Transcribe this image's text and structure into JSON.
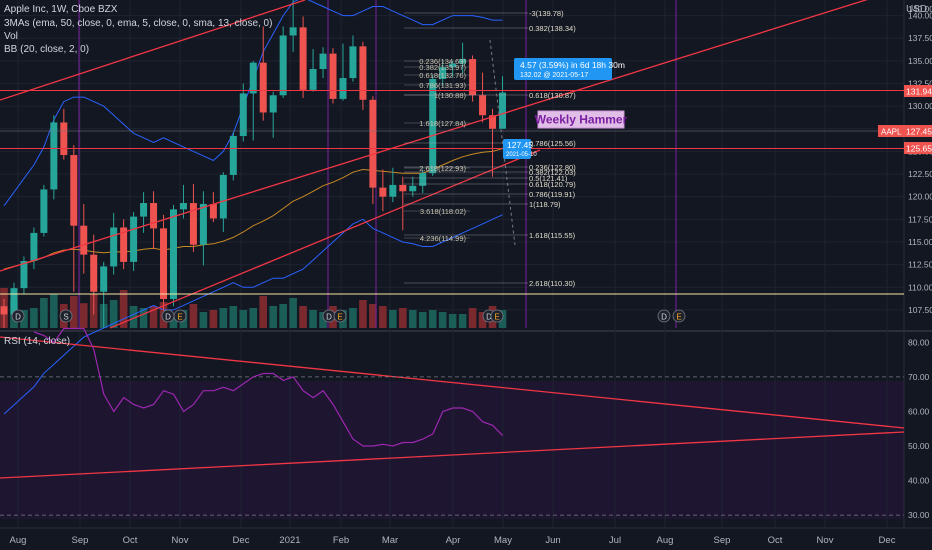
{
  "header": {
    "symbol_line": "Apple Inc, 1W, Cboe BZX",
    "ma_line": "3MAs (ema, 50, close, 0, ema, 5, close, 0, sma, 13, close, 0)",
    "vol_line": "Vol",
    "bb_line": "BB (20, close, 2, 0)",
    "rsi_line": "RSI (14, close)",
    "currency": "USD"
  },
  "colors": {
    "background": "#131722",
    "up": "#26a69a",
    "down": "#ef5350",
    "trendline": "#f23645",
    "bb": "#2962ff",
    "ma": "#f5a623",
    "rsi": "#9c27b0",
    "event_line": "#7b1fa2",
    "fib": "#b2b5be",
    "tag_blue": "#2196f3",
    "annotation_bg": "#e1bee7",
    "annotation_text": "#7b1fa2"
  },
  "chart_data": {
    "type": "candlestick",
    "symbol": "AAPL",
    "interval": "1W",
    "x_labels": [
      "Aug",
      "Sep",
      "Oct",
      "Nov",
      "Dec",
      "2021",
      "Feb",
      "Mar",
      "Apr",
      "May",
      "Jun",
      "Jul",
      "Aug",
      "Sep",
      "Oct",
      "Nov",
      "Dec"
    ],
    "y_ticks": [
      107.5,
      110.0,
      112.5,
      115.0,
      117.5,
      120.0,
      122.5,
      125.0,
      127.5,
      130.0,
      132.5,
      135.0,
      137.5,
      140.0
    ],
    "y_range": [
      105.5,
      141.5
    ],
    "candles": [
      {
        "o": 107.9,
        "h": 108.7,
        "l": 105.5,
        "c": 107.0
      },
      {
        "o": 107.0,
        "h": 110.5,
        "l": 106.6,
        "c": 109.9
      },
      {
        "o": 109.9,
        "h": 113.4,
        "l": 109.2,
        "c": 112.9
      },
      {
        "o": 112.9,
        "h": 116.6,
        "l": 112.0,
        "c": 116.0
      },
      {
        "o": 116.0,
        "h": 121.3,
        "l": 115.6,
        "c": 120.8
      },
      {
        "o": 120.8,
        "h": 129.0,
        "l": 119.7,
        "c": 128.2
      },
      {
        "o": 128.2,
        "h": 129.7,
        "l": 124.1,
        "c": 124.6
      },
      {
        "o": 124.6,
        "h": 125.7,
        "l": 109.5,
        "c": 116.8
      },
      {
        "o": 116.8,
        "h": 119.2,
        "l": 111.5,
        "c": 113.6
      },
      {
        "o": 113.6,
        "h": 115.8,
        "l": 107.0,
        "c": 109.5
      },
      {
        "o": 109.5,
        "h": 112.8,
        "l": 105.5,
        "c": 112.3
      },
      {
        "o": 112.3,
        "h": 118.2,
        "l": 111.4,
        "c": 116.6
      },
      {
        "o": 116.6,
        "h": 117.5,
        "l": 112.0,
        "c": 112.8
      },
      {
        "o": 112.8,
        "h": 118.3,
        "l": 111.8,
        "c": 117.8
      },
      {
        "o": 117.8,
        "h": 120.5,
        "l": 116.0,
        "c": 119.3
      },
      {
        "o": 119.3,
        "h": 120.6,
        "l": 114.2,
        "c": 116.5
      },
      {
        "o": 116.5,
        "h": 118.0,
        "l": 107.4,
        "c": 108.7
      },
      {
        "o": 108.7,
        "h": 119.1,
        "l": 107.9,
        "c": 118.6
      },
      {
        "o": 118.6,
        "h": 121.3,
        "l": 117.6,
        "c": 119.3
      },
      {
        "o": 119.3,
        "h": 121.4,
        "l": 113.9,
        "c": 114.7
      },
      {
        "o": 114.7,
        "h": 120.6,
        "l": 112.4,
        "c": 119.2
      },
      {
        "o": 119.2,
        "h": 120.5,
        "l": 117.2,
        "c": 117.6
      },
      {
        "o": 117.6,
        "h": 122.7,
        "l": 116.1,
        "c": 122.4
      },
      {
        "o": 122.4,
        "h": 127.1,
        "l": 121.8,
        "c": 126.7
      },
      {
        "o": 126.7,
        "h": 132.5,
        "l": 126.1,
        "c": 131.4
      },
      {
        "o": 131.4,
        "h": 135.0,
        "l": 126.2,
        "c": 134.8
      },
      {
        "o": 134.8,
        "h": 138.8,
        "l": 128.4,
        "c": 129.3
      },
      {
        "o": 129.3,
        "h": 131.6,
        "l": 126.5,
        "c": 131.2
      },
      {
        "o": 131.2,
        "h": 138.8,
        "l": 130.9,
        "c": 137.8
      },
      {
        "o": 137.8,
        "h": 145.1,
        "l": 136.0,
        "c": 138.7
      },
      {
        "o": 138.7,
        "h": 139.9,
        "l": 130.9,
        "c": 131.8
      },
      {
        "o": 131.8,
        "h": 136.3,
        "l": 131.6,
        "c": 134.1
      },
      {
        "o": 134.1,
        "h": 136.5,
        "l": 133.1,
        "c": 135.8
      },
      {
        "o": 135.8,
        "h": 136.4,
        "l": 130.3,
        "c": 130.8
      },
      {
        "o": 130.8,
        "h": 136.9,
        "l": 130.6,
        "c": 133.1
      },
      {
        "o": 133.1,
        "h": 137.8,
        "l": 132.7,
        "c": 136.6
      },
      {
        "o": 136.6,
        "h": 137.1,
        "l": 129.6,
        "c": 130.7
      },
      {
        "o": 130.7,
        "h": 131.1,
        "l": 119.2,
        "c": 121.0
      },
      {
        "o": 121.0,
        "h": 123.0,
        "l": 118.4,
        "c": 120.0
      },
      {
        "o": 120.0,
        "h": 123.2,
        "l": 119.4,
        "c": 121.3
      },
      {
        "o": 121.3,
        "h": 122.2,
        "l": 116.3,
        "c": 120.6
      },
      {
        "o": 120.6,
        "h": 122.2,
        "l": 120.0,
        "c": 121.2
      },
      {
        "o": 121.2,
        "h": 123.0,
        "l": 120.4,
        "c": 122.6
      },
      {
        "o": 122.6,
        "h": 133.4,
        "l": 122.3,
        "c": 133.0
      },
      {
        "o": 133.0,
        "h": 135.1,
        "l": 132.2,
        "c": 134.3
      },
      {
        "o": 134.3,
        "h": 135.0,
        "l": 133.2,
        "c": 134.7
      },
      {
        "o": 134.7,
        "h": 137.0,
        "l": 133.6,
        "c": 135.2
      },
      {
        "o": 135.2,
        "h": 135.6,
        "l": 130.5,
        "c": 131.2
      },
      {
        "o": 131.2,
        "h": 133.7,
        "l": 128.2,
        "c": 129.0
      },
      {
        "o": 129.0,
        "h": 129.7,
        "l": 122.2,
        "c": 127.5
      },
      {
        "o": 127.5,
        "h": 133.3,
        "l": 127.5,
        "c": 131.5
      }
    ],
    "volume": [
      {
        "v": 1.0,
        "up": false
      },
      {
        "v": 0.7,
        "up": true
      },
      {
        "v": 0.45,
        "up": true
      },
      {
        "v": 0.5,
        "up": true
      },
      {
        "v": 0.75,
        "up": true
      },
      {
        "v": 0.85,
        "up": true
      },
      {
        "v": 0.6,
        "up": false
      },
      {
        "v": 0.8,
        "up": false
      },
      {
        "v": 0.62,
        "up": false
      },
      {
        "v": 0.85,
        "up": false
      },
      {
        "v": 0.6,
        "up": true
      },
      {
        "v": 0.7,
        "up": true
      },
      {
        "v": 0.95,
        "up": false
      },
      {
        "v": 0.55,
        "up": true
      },
      {
        "v": 0.5,
        "up": true
      },
      {
        "v": 0.55,
        "up": false
      },
      {
        "v": 0.65,
        "up": false
      },
      {
        "v": 0.35,
        "up": true
      },
      {
        "v": 0.45,
        "up": true
      },
      {
        "v": 0.6,
        "up": false
      },
      {
        "v": 0.4,
        "up": true
      },
      {
        "v": 0.45,
        "up": false
      },
      {
        "v": 0.5,
        "up": true
      },
      {
        "v": 0.55,
        "up": true
      },
      {
        "v": 0.45,
        "up": true
      },
      {
        "v": 0.5,
        "up": true
      },
      {
        "v": 0.8,
        "up": false
      },
      {
        "v": 0.55,
        "up": true
      },
      {
        "v": 0.6,
        "up": true
      },
      {
        "v": 0.75,
        "up": true
      },
      {
        "v": 0.55,
        "up": false
      },
      {
        "v": 0.45,
        "up": true
      },
      {
        "v": 0.4,
        "up": true
      },
      {
        "v": 0.55,
        "up": false
      },
      {
        "v": 0.45,
        "up": true
      },
      {
        "v": 0.5,
        "up": true
      },
      {
        "v": 0.7,
        "up": false
      },
      {
        "v": 0.6,
        "up": false
      },
      {
        "v": 0.55,
        "up": false
      },
      {
        "v": 0.45,
        "up": true
      },
      {
        "v": 0.5,
        "up": false
      },
      {
        "v": 0.45,
        "up": true
      },
      {
        "v": 0.4,
        "up": true
      },
      {
        "v": 0.45,
        "up": true
      },
      {
        "v": 0.4,
        "up": true
      },
      {
        "v": 0.35,
        "up": true
      },
      {
        "v": 0.35,
        "up": true
      },
      {
        "v": 0.5,
        "up": false
      },
      {
        "v": 0.4,
        "up": false
      },
      {
        "v": 0.55,
        "up": false
      },
      {
        "v": 0.45,
        "up": true
      }
    ],
    "ema50": [
      112.0,
      112.3,
      112.6,
      112.9,
      113.3,
      113.8,
      114.1,
      114.2,
      114.1,
      113.9,
      113.8,
      113.9,
      113.9,
      114.0,
      114.2,
      114.3,
      114.1,
      114.3,
      114.5,
      114.5,
      114.7,
      114.8,
      115.1,
      115.5,
      116.1,
      116.8,
      117.3,
      117.9,
      118.7,
      119.5,
      120.0,
      120.6,
      121.2,
      121.6,
      122.1,
      122.7,
      123.0,
      122.9,
      122.8,
      122.7,
      122.6,
      122.6,
      122.6,
      123.0,
      123.5,
      124.0,
      124.4,
      124.7,
      124.9,
      125.0,
      125.3
    ],
    "bb_upper": [
      119.0,
      120.5,
      122.0,
      123.5,
      125.5,
      128.5,
      130.5,
      131.0,
      131.0,
      130.5,
      130.0,
      129.0,
      128.0,
      127.0,
      126.5,
      126.0,
      126.5,
      126.0,
      125.5,
      125.0,
      124.5,
      124.0,
      125.0,
      127.0,
      130.0,
      133.0,
      136.0,
      138.0,
      140.0,
      141.5,
      142.0,
      141.5,
      141.0,
      140.5,
      140.0,
      140.0,
      140.5,
      141.0,
      141.0,
      140.5,
      140.0,
      139.5,
      139.0,
      139.0,
      139.5,
      140.0,
      140.0,
      140.0,
      139.8,
      139.5,
      139.5
    ],
    "bb_lower": [
      96.0,
      97.0,
      98.0,
      99.0,
      100.5,
      101.5,
      102.5,
      103.5,
      104.5,
      105.0,
      105.5,
      106.0,
      106.5,
      107.0,
      107.5,
      108.0,
      107.5,
      107.5,
      108.0,
      108.5,
      109.0,
      109.5,
      110.0,
      110.5,
      110.0,
      110.0,
      110.5,
      111.0,
      111.0,
      111.5,
      112.0,
      113.0,
      114.0,
      115.0,
      116.0,
      117.0,
      117.5,
      116.5,
      116.0,
      115.5,
      115.0,
      114.8,
      114.5,
      114.5,
      115.0,
      115.5,
      116.0,
      116.5,
      117.0,
      117.5,
      118.0
    ],
    "rsi": {
      "ticks": [
        30.0,
        40.0,
        50.0,
        60.0,
        70.0,
        80.0
      ],
      "range": [
        28,
        83
      ],
      "bands": [
        30,
        70
      ],
      "values": [
        83,
        82,
        80,
        84,
        84,
        84,
        78,
        65,
        60,
        64,
        62,
        61,
        62,
        66,
        65,
        60,
        62,
        66,
        66,
        67,
        66,
        68,
        70,
        71,
        71,
        69,
        70,
        66,
        64,
        66,
        62,
        57,
        52,
        50,
        50,
        50.5,
        50,
        51,
        51,
        52,
        53.5,
        60,
        61,
        61,
        60,
        57,
        56,
        53
      ]
    }
  },
  "fib_upper": [
    {
      "label": "-3(139.78)"
    },
    {
      "label": "0.382(138.34)"
    },
    {
      "label": "0.618(130.87)"
    },
    {
      "label": "0.786(125.56)"
    },
    {
      "label": "0.236(122.80)"
    },
    {
      "label": "0.382(122.03)"
    },
    {
      "label": "0.5(121.41)"
    },
    {
      "label": "0.618(120.79)"
    },
    {
      "label": "0.786(119.91)"
    },
    {
      "label": "1(118.79)"
    },
    {
      "label": "1.618(115.55)"
    },
    {
      "label": "2.618(110.30)"
    }
  ],
  "fib_left": [
    {
      "label": "0.236(134.63)"
    },
    {
      "label": "0.382(133.97)"
    },
    {
      "label": "0.618(132.76)"
    },
    {
      "label": "0.786(131.93)"
    },
    {
      "label": "1(130.88)"
    },
    {
      "label": "1.618(127.84)"
    },
    {
      "label": "2.618(122.93)"
    },
    {
      "label": "3.618(118.02)"
    },
    {
      "label": "4.236(114.99)"
    }
  ],
  "price_tags": [
    {
      "label": "131.94",
      "kind": "line"
    },
    {
      "label": "127.45",
      "kind": "last",
      "prefix": "AAPL"
    },
    {
      "label": "125.65",
      "kind": "line"
    }
  ],
  "axis_top": {
    "label": "140.00"
  },
  "annotations": {
    "measure_line1": "4.57 (3.59%) in 6d 18h 30m",
    "measure_line2": "132.02 @ 2021-05-17",
    "price_tooltip": "127.45",
    "price_tooltip_date": "2021-05-10",
    "weekly_hammer": "Weekly Hammer"
  },
  "events": [
    {
      "label": "D"
    },
    {
      "label": "S"
    },
    {
      "label": "D"
    },
    {
      "label": "E"
    },
    {
      "label": "D"
    },
    {
      "label": "E"
    },
    {
      "label": "D"
    },
    {
      "label": "E"
    },
    {
      "label": "D"
    },
    {
      "label": "E"
    }
  ]
}
